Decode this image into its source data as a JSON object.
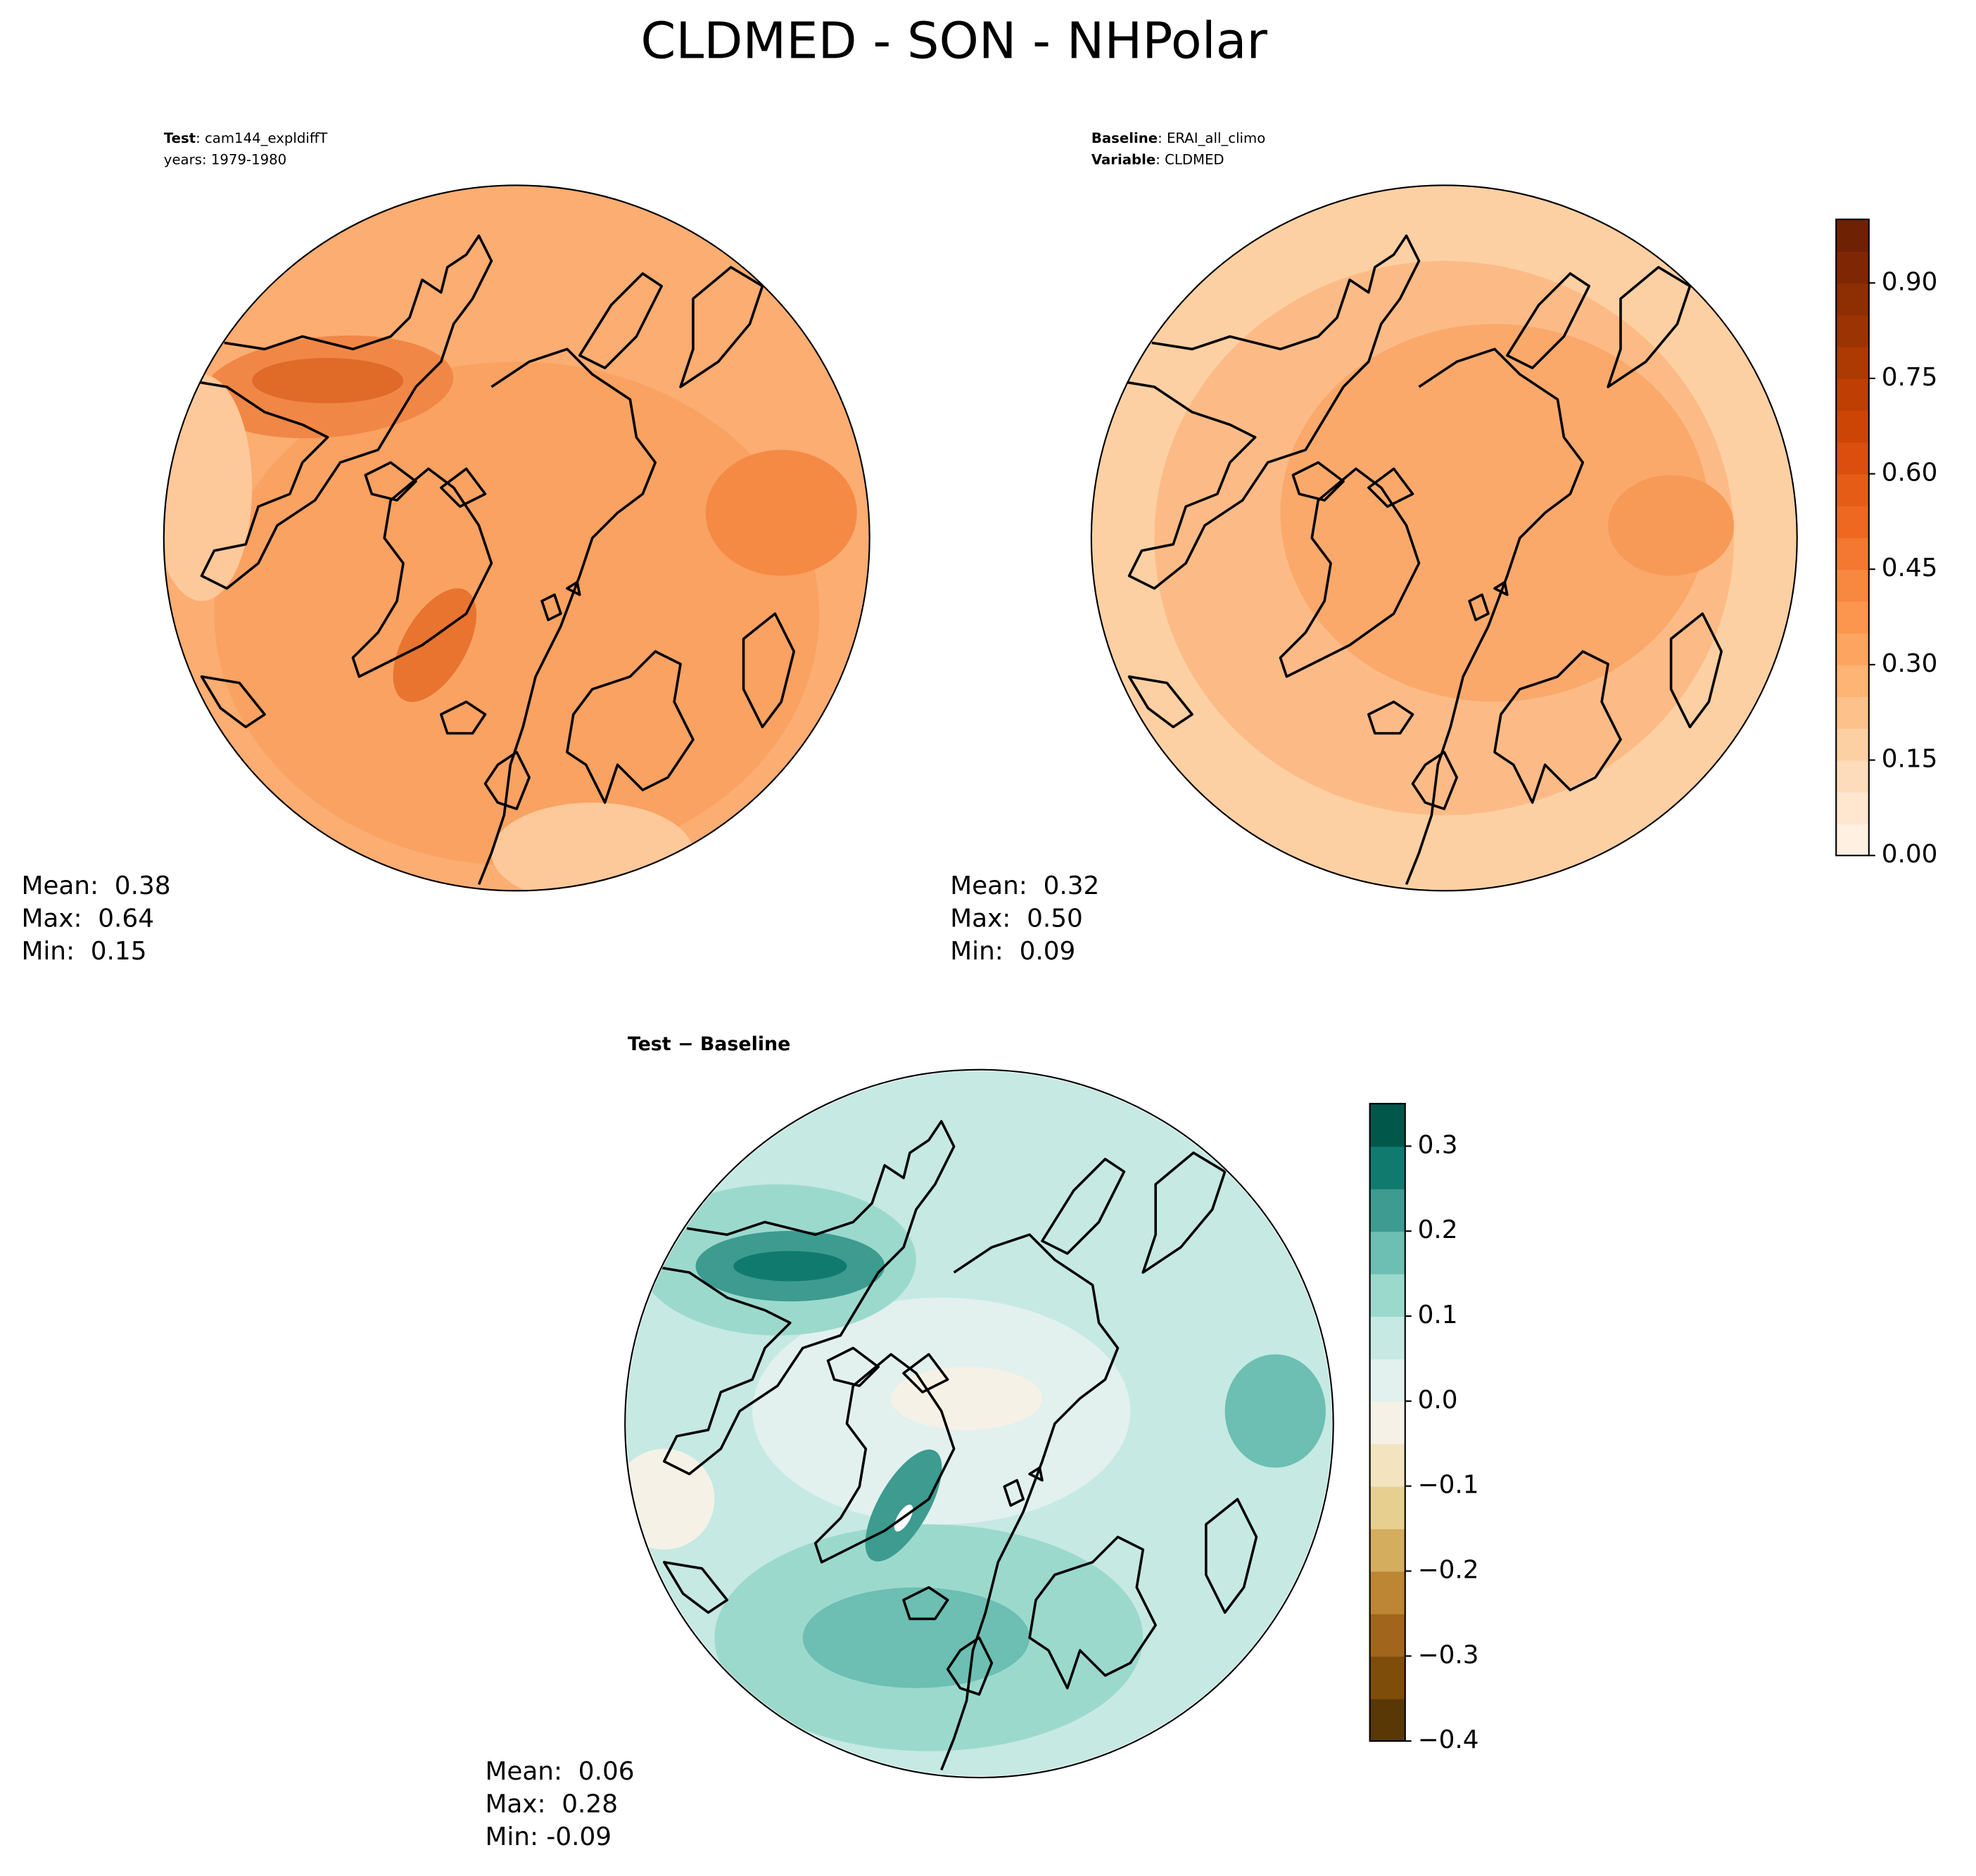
{
  "title": "CLDMED - SON - NHPolar",
  "panels": [
    {
      "header": [
        {
          "label": "Test",
          "text": ": cam144_expldiffT"
        },
        {
          "text": "years: 1979-1980"
        }
      ],
      "stats": [
        "Mean:  0.38",
        "Max:  0.64",
        "Min:  0.15"
      ]
    },
    {
      "header": [
        {
          "label": "Baseline",
          "text": ": ERAI_all_climo"
        },
        {
          "label": "Variable",
          "text": ": CLDMED"
        }
      ],
      "stats": [
        "Mean:  0.32",
        "Max:  0.50",
        "Min:  0.09"
      ]
    },
    {
      "header": [
        {
          "label": "Test − Baseline"
        }
      ],
      "stats": [
        "Mean:  0.06",
        "Max:  0.28",
        "Min: -0.09"
      ]
    }
  ],
  "colorbars": [
    {
      "ylim": [
        0,
        1.0
      ],
      "yticks": [
        {
          "value": 0,
          "label": "0.00"
        },
        {
          "value": 0.15,
          "label": "0.15"
        },
        {
          "value": 0.3,
          "label": "0.30"
        },
        {
          "value": 0.45,
          "label": "0.45"
        },
        {
          "value": 0.6,
          "label": "0.60"
        },
        {
          "value": 0.75,
          "label": "0.75"
        },
        {
          "value": 0.9,
          "label": "0.90"
        }
      ],
      "colors": [
        "#fff0e1",
        "#fee6cf",
        "#fddcbb",
        "#fdd0a3",
        "#fdc28b",
        "#fdb474",
        "#fda560",
        "#fc964e",
        "#f8873f",
        "#f47831",
        "#ee6822",
        "#e55c17",
        "#db4e0d",
        "#cd4505",
        "#be3e03",
        "#ad3903",
        "#9c3303",
        "#8d2e03",
        "#7f2704",
        "#6f2203"
      ]
    },
    {
      "ylim": [
        -0.4,
        0.35
      ],
      "yticks": [
        {
          "value": -0.4,
          "label": "−0.4"
        },
        {
          "value": -0.3,
          "label": "−0.3"
        },
        {
          "value": -0.2,
          "label": "−0.2"
        },
        {
          "value": -0.1,
          "label": "−0.1"
        },
        {
          "value": 0,
          "label": "0.0"
        },
        0.1,
        0.2,
        0.3
      ],
      "colors": [
        "#5a3805",
        "#7f4d0a",
        "#a1661c",
        "#bd8635",
        "#d4ad5f",
        "#e6cf8f",
        "#f1e4bf",
        "#f6f1e6",
        "#e2f1ee",
        "#c6e9e3",
        "#9cd9cd",
        "#6cbfb2",
        "#3d9b90",
        "#107a6f",
        "#01574a"
      ]
    }
  ]
}
